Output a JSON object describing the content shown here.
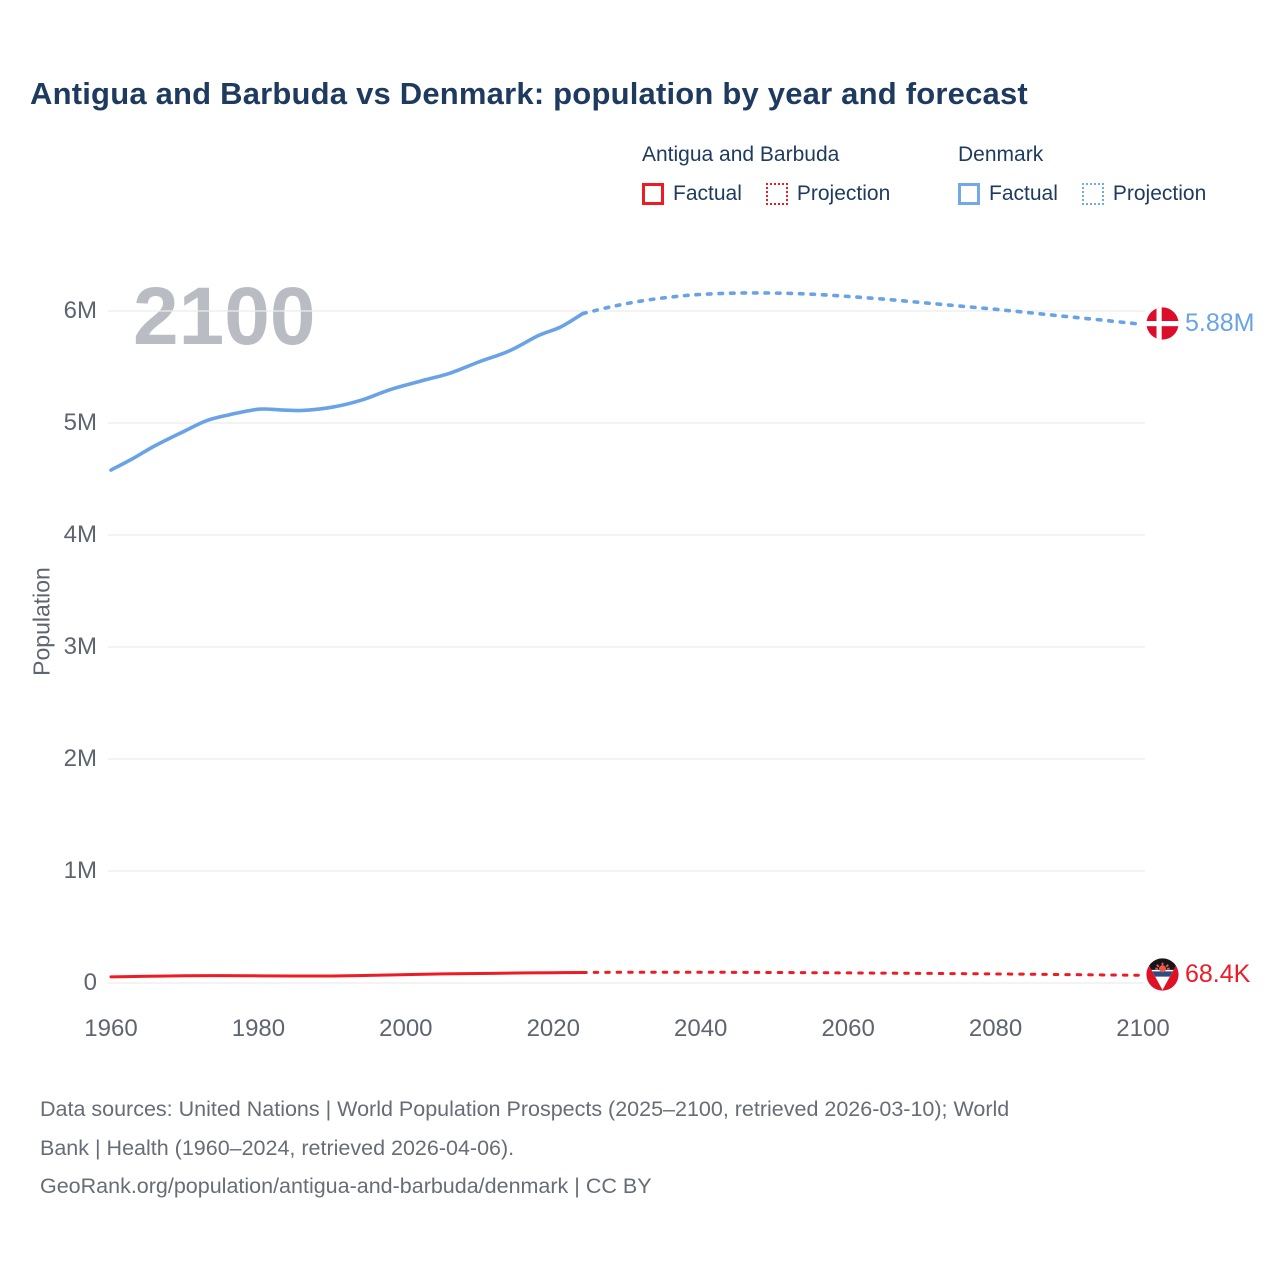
{
  "title": "Antigua and Barbuda vs Denmark: population by year and forecast",
  "watermark": "2100",
  "legend": {
    "groups": [
      {
        "name": "Antigua and Barbuda",
        "color": "#ed1c24",
        "items": [
          {
            "label": "Factual",
            "line_style": "solid"
          },
          {
            "label": "Projection",
            "line_style": "dotted"
          }
        ]
      },
      {
        "name": "Denmark",
        "color": "#74a9e8",
        "items": [
          {
            "label": "Factual",
            "line_style": "solid"
          },
          {
            "label": "Projection",
            "line_style": "dotted"
          }
        ]
      }
    ]
  },
  "chart_data": {
    "type": "line",
    "title": "Antigua and Barbuda vs Denmark: population by year and forecast",
    "xlabel": "",
    "ylabel": "Population",
    "x_domain": [
      1960,
      2100
    ],
    "y_domain": [
      0,
      6000000
    ],
    "grid": true,
    "legend_position": "top-right",
    "x_ticks": [
      {
        "value": 1960,
        "label": "1960"
      },
      {
        "value": 1980,
        "label": "1980"
      },
      {
        "value": 2000,
        "label": "2000"
      },
      {
        "value": 2020,
        "label": "2020"
      },
      {
        "value": 2040,
        "label": "2040"
      },
      {
        "value": 2060,
        "label": "2060"
      },
      {
        "value": 2080,
        "label": "2080"
      },
      {
        "value": 2100,
        "label": "2100"
      }
    ],
    "y_ticks": [
      {
        "value": 0,
        "label": "0"
      },
      {
        "value": 1000000,
        "label": "1M"
      },
      {
        "value": 2000000,
        "label": "2M"
      },
      {
        "value": 3000000,
        "label": "3M"
      },
      {
        "value": 4000000,
        "label": "4M"
      },
      {
        "value": 5000000,
        "label": "5M"
      },
      {
        "value": 6000000,
        "label": "6M"
      }
    ],
    "series": [
      {
        "name": "Denmark Factual",
        "color": "#69a3e6",
        "line_style": "solid",
        "points": [
          [
            1960,
            4580000
          ],
          [
            1963,
            4684000
          ],
          [
            1966,
            4798000
          ],
          [
            1970,
            4929000
          ],
          [
            1973,
            5022000
          ],
          [
            1976,
            5073000
          ],
          [
            1980,
            5123000
          ],
          [
            1983,
            5117000
          ],
          [
            1986,
            5112000
          ],
          [
            1990,
            5141000
          ],
          [
            1994,
            5205000
          ],
          [
            1998,
            5301000
          ],
          [
            2002,
            5374000
          ],
          [
            2006,
            5445000
          ],
          [
            2010,
            5548000
          ],
          [
            2014,
            5643000
          ],
          [
            2018,
            5781000
          ],
          [
            2021,
            5857000
          ],
          [
            2024,
            5977000
          ]
        ]
      },
      {
        "name": "Denmark Projection",
        "color": "#69a3e6",
        "line_style": "dotted",
        "points": [
          [
            2024,
            5977000
          ],
          [
            2028,
            6040000
          ],
          [
            2032,
            6090000
          ],
          [
            2036,
            6125000
          ],
          [
            2040,
            6148000
          ],
          [
            2045,
            6160000
          ],
          [
            2050,
            6160000
          ],
          [
            2055,
            6150000
          ],
          [
            2060,
            6130000
          ],
          [
            2065,
            6105000
          ],
          [
            2070,
            6075000
          ],
          [
            2075,
            6045000
          ],
          [
            2080,
            6015000
          ],
          [
            2085,
            5982000
          ],
          [
            2090,
            5948000
          ],
          [
            2095,
            5915000
          ],
          [
            2100,
            5880000
          ]
        ]
      },
      {
        "name": "Antigua and Barbuda Factual",
        "color": "#ed1c24",
        "line_style": "solid",
        "points": [
          [
            1960,
            55000
          ],
          [
            1965,
            60000
          ],
          [
            1970,
            65000
          ],
          [
            1975,
            66000
          ],
          [
            1980,
            64000
          ],
          [
            1985,
            63000
          ],
          [
            1990,
            63000
          ],
          [
            1995,
            68000
          ],
          [
            2000,
            75000
          ],
          [
            2005,
            81000
          ],
          [
            2010,
            85000
          ],
          [
            2015,
            89000
          ],
          [
            2020,
            92000
          ],
          [
            2024,
            94000
          ]
        ]
      },
      {
        "name": "Antigua and Barbuda Projection",
        "color": "#ed1c24",
        "line_style": "dotted",
        "points": [
          [
            2024,
            94000
          ],
          [
            2030,
            96000
          ],
          [
            2040,
            96000
          ],
          [
            2050,
            94000
          ],
          [
            2060,
            90000
          ],
          [
            2070,
            86000
          ],
          [
            2080,
            81000
          ],
          [
            2090,
            75000
          ],
          [
            2100,
            68400
          ]
        ]
      }
    ],
    "end_labels": [
      {
        "series": "Denmark",
        "label": "5.88M",
        "color": "#69a3e6",
        "flag": "denmark"
      },
      {
        "series": "Antigua and Barbuda",
        "label": "68.4K",
        "color": "#ed1c24",
        "flag": "antigua-and-barbuda"
      }
    ]
  },
  "footer": {
    "lines": [
      "Data sources: United Nations | World Population Prospects (2025–2100, retrieved 2026-03-10); World",
      "Bank | Health (1960–2024, retrieved 2026-04-06).",
      "GeoRank.org/population/antigua-and-barbuda/denmark | CC BY"
    ]
  }
}
